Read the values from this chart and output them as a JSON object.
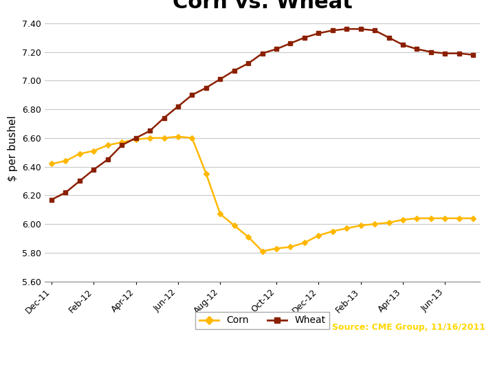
{
  "title": "Corn vs. Wheat",
  "ylabel": "$ per bushel",
  "title_fontsize": 22,
  "ylabel_fontsize": 11,
  "background_color": "#ffffff",
  "corn_color": "#FFB800",
  "wheat_color": "#8B2000",
  "x_labels": [
    "Dec-11",
    "Feb-12",
    "Apr-12",
    "Jun-12",
    "Aug-12",
    "Oct-12",
    "Dec-12",
    "Feb-13",
    "Apr-13",
    "Jun-13"
  ],
  "corn_values": [
    6.42,
    6.44,
    6.49,
    6.51,
    6.55,
    6.57,
    6.59,
    6.6,
    6.6,
    6.61,
    6.6,
    6.35,
    6.07,
    5.99,
    5.91,
    5.81,
    5.83,
    5.84,
    5.87,
    5.92,
    5.95,
    5.97,
    5.99,
    6.0,
    6.01,
    6.03,
    6.04,
    6.04,
    6.04,
    6.04,
    6.04
  ],
  "wheat_values": [
    6.17,
    6.22,
    6.3,
    6.38,
    6.45,
    6.55,
    6.6,
    6.65,
    6.74,
    6.82,
    6.9,
    6.95,
    7.01,
    7.07,
    7.12,
    7.19,
    7.22,
    7.26,
    7.3,
    7.33,
    7.35,
    7.36,
    7.36,
    7.35,
    7.3,
    7.25,
    7.22,
    7.2,
    7.19,
    7.19,
    7.18
  ],
  "ylim": [
    5.6,
    7.45
  ],
  "yticks": [
    5.6,
    5.8,
    6.0,
    6.2,
    6.4,
    6.6,
    6.8,
    7.0,
    7.2,
    7.4
  ],
  "x_tick_positions": [
    0,
    3,
    6,
    9,
    12,
    16,
    19,
    22,
    25,
    28
  ],
  "footer_bg": "#C0392B",
  "top_bar_bg": "#C0392B"
}
